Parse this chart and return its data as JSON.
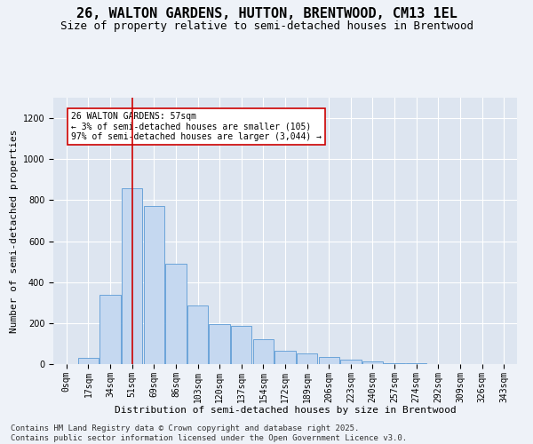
{
  "title_line1": "26, WALTON GARDENS, HUTTON, BRENTWOOD, CM13 1EL",
  "title_line2": "Size of property relative to semi-detached houses in Brentwood",
  "xlabel": "Distribution of semi-detached houses by size in Brentwood",
  "ylabel": "Number of semi-detached properties",
  "footnote": "Contains HM Land Registry data © Crown copyright and database right 2025.\nContains public sector information licensed under the Open Government Licence v3.0.",
  "bar_labels": [
    "0sqm",
    "17sqm",
    "34sqm",
    "51sqm",
    "69sqm",
    "86sqm",
    "103sqm",
    "120sqm",
    "137sqm",
    "154sqm",
    "172sqm",
    "189sqm",
    "206sqm",
    "223sqm",
    "240sqm",
    "257sqm",
    "274sqm",
    "292sqm",
    "309sqm",
    "326sqm",
    "343sqm"
  ],
  "bar_values": [
    0,
    30,
    340,
    860,
    770,
    490,
    285,
    195,
    185,
    120,
    65,
    50,
    35,
    20,
    15,
    5,
    3,
    2,
    1,
    0,
    0
  ],
  "bar_color": "#c5d8f0",
  "bar_edge_color": "#5b9bd5",
  "property_bin_index": 3,
  "property_label": "26 WALTON GARDENS: 57sqm",
  "pct_smaller": 3,
  "pct_smaller_count": 105,
  "pct_larger": 97,
  "pct_larger_count": 3044,
  "vline_color": "#cc0000",
  "annotation_box_color": "#cc0000",
  "ylim": [
    0,
    1300
  ],
  "yticks": [
    0,
    200,
    400,
    600,
    800,
    1000,
    1200
  ],
  "background_color": "#eef2f8",
  "plot_bg_color": "#dde5f0",
  "grid_color": "#ffffff",
  "title_fontsize": 11,
  "subtitle_fontsize": 9,
  "axis_label_fontsize": 8,
  "tick_fontsize": 7,
  "annotation_fontsize": 7,
  "footnote_fontsize": 6.5
}
